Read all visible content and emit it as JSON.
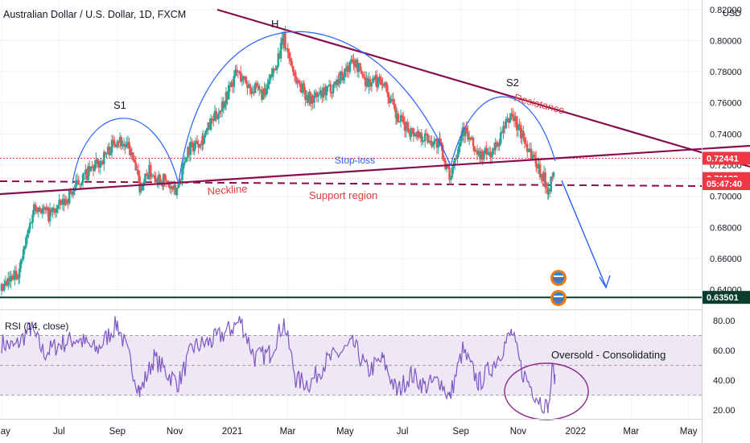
{
  "chart_data": {
    "type": "candlestick",
    "title": "Australian Dollar / U.S. Dollar, 1D, FXCM",
    "currency": "USD",
    "price_axis": {
      "ticks": [
        "0.82000",
        "0.80000",
        "0.78000",
        "0.76000",
        "0.74000",
        "0.72000",
        "0.70000",
        "0.68000",
        "0.66000",
        "0.64000"
      ],
      "ylim": [
        0.626,
        0.823
      ]
    },
    "time_axis": {
      "labels": [
        "May",
        "Jul",
        "Sep",
        "Nov",
        "2021",
        "Mar",
        "May",
        "Jul",
        "Sep",
        "Nov",
        "2022",
        "Mar",
        "May"
      ],
      "xlim": [
        "2020-05-01",
        "2022-05-15"
      ]
    },
    "price_labels": [
      {
        "text": "0.72441",
        "value": 0.72441,
        "color": "#f23645"
      },
      {
        "text": "0.71138",
        "value": 0.71138,
        "color": "#f23645"
      },
      {
        "text": "05:47:40",
        "value": 0.705,
        "color": "#f23645"
      },
      {
        "text": "0.63501",
        "value": 0.63501,
        "color": "#0b3d2e"
      }
    ],
    "close_path": [
      [
        "2020-05-01",
        0.6392
      ],
      [
        "2020-05-20",
        0.6525
      ],
      [
        "2020-06-05",
        0.695
      ],
      [
        "2020-06-20",
        0.688
      ],
      [
        "2020-07-05",
        0.695
      ],
      [
        "2020-07-25",
        0.711
      ],
      [
        "2020-08-15",
        0.723
      ],
      [
        "2020-09-01",
        0.7375
      ],
      [
        "2020-09-15",
        0.729
      ],
      [
        "2020-09-25",
        0.706
      ],
      [
        "2020-10-05",
        0.716
      ],
      [
        "2020-10-20",
        0.71
      ],
      [
        "2020-11-02",
        0.702
      ],
      [
        "2020-11-15",
        0.73
      ],
      [
        "2020-12-01",
        0.738
      ],
      [
        "2020-12-20",
        0.757
      ],
      [
        "2021-01-06",
        0.78
      ],
      [
        "2021-01-20",
        0.77
      ],
      [
        "2021-02-05",
        0.765
      ],
      [
        "2021-02-25",
        0.8007
      ],
      [
        "2021-03-10",
        0.775
      ],
      [
        "2021-03-25",
        0.762
      ],
      [
        "2021-04-10",
        0.766
      ],
      [
        "2021-04-25",
        0.776
      ],
      [
        "2021-05-10",
        0.787
      ],
      [
        "2021-05-25",
        0.773
      ],
      [
        "2021-06-10",
        0.775
      ],
      [
        "2021-06-25",
        0.75
      ],
      [
        "2021-07-10",
        0.742
      ],
      [
        "2021-07-25",
        0.738
      ],
      [
        "2021-08-10",
        0.733
      ],
      [
        "2021-08-20",
        0.712
      ],
      [
        "2021-09-03",
        0.744
      ],
      [
        "2021-09-20",
        0.726
      ],
      [
        "2021-10-05",
        0.728
      ],
      [
        "2021-10-25",
        0.753
      ],
      [
        "2021-11-05",
        0.739
      ],
      [
        "2021-11-20",
        0.722
      ],
      [
        "2021-12-03",
        0.705
      ],
      [
        "2021-12-10",
        0.715
      ]
    ],
    "rsi": {
      "label": "RSI (14, close)",
      "ticks": [
        "80.00",
        "60.00",
        "40.00",
        "20.00"
      ],
      "ylim": [
        15,
        87
      ],
      "band": [
        30,
        70
      ],
      "midline": 50,
      "path": [
        [
          "2020-05-01",
          65
        ],
        [
          "2020-05-15",
          62
        ],
        [
          "2020-06-01",
          75
        ],
        [
          "2020-06-15",
          58
        ],
        [
          "2020-07-01",
          64
        ],
        [
          "2020-07-20",
          68
        ],
        [
          "2020-08-10",
          60
        ],
        [
          "2020-09-01",
          78
        ],
        [
          "2020-09-15",
          52
        ],
        [
          "2020-09-25",
          32
        ],
        [
          "2020-10-10",
          55
        ],
        [
          "2020-10-25",
          44
        ],
        [
          "2020-11-05",
          38
        ],
        [
          "2020-11-20",
          62
        ],
        [
          "2020-12-10",
          66
        ],
        [
          "2020-12-30",
          74
        ],
        [
          "2021-01-10",
          80
        ],
        [
          "2021-01-25",
          55
        ],
        [
          "2021-02-10",
          58
        ],
        [
          "2021-02-25",
          79
        ],
        [
          "2021-03-10",
          40
        ],
        [
          "2021-03-25",
          38
        ],
        [
          "2021-04-10",
          52
        ],
        [
          "2021-04-25",
          58
        ],
        [
          "2021-05-10",
          64
        ],
        [
          "2021-05-25",
          46
        ],
        [
          "2021-06-10",
          54
        ],
        [
          "2021-06-25",
          32
        ],
        [
          "2021-07-10",
          44
        ],
        [
          "2021-07-25",
          36
        ],
        [
          "2021-08-10",
          40
        ],
        [
          "2021-08-20",
          28
        ],
        [
          "2021-09-03",
          60
        ],
        [
          "2021-09-20",
          38
        ],
        [
          "2021-10-05",
          50
        ],
        [
          "2021-10-25",
          72
        ],
        [
          "2021-11-05",
          46
        ],
        [
          "2021-11-20",
          30
        ],
        [
          "2021-12-03",
          20
        ],
        [
          "2021-12-07",
          46
        ],
        [
          "2021-12-10",
          44
        ]
      ]
    },
    "annotations": [
      {
        "text": "S1",
        "color": "#131722"
      },
      {
        "text": "H",
        "color": "#131722"
      },
      {
        "text": "S2",
        "color": "#131722"
      },
      {
        "text": "Resistance",
        "color": "#e03c3c"
      },
      {
        "text": "Stop-loss",
        "color": "#2962ff"
      },
      {
        "text": "Neckline",
        "color": "#e03c3c"
      },
      {
        "text": "Support region",
        "color": "#e03c3c"
      },
      {
        "text": "Oversold - Consolidating",
        "color": "#131722"
      }
    ],
    "colors": {
      "up": "#26a69a",
      "down": "#ef5350",
      "trend": "#880e4f",
      "arc": "#2962ff",
      "support_line": "#0b3d2e",
      "rsi_line": "#7e57c2",
      "rsi_band": "#ede7f6",
      "stop_loss": "#f23645"
    }
  }
}
